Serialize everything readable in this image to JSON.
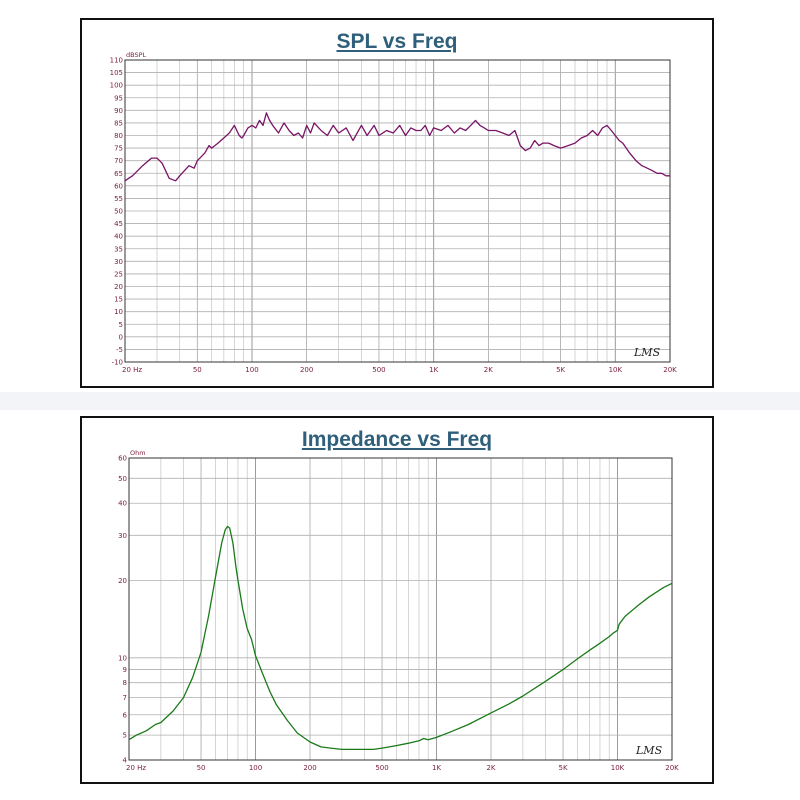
{
  "chart_data": [
    {
      "type": "line",
      "title": "SPL vs Freq",
      "ylabel": "dBSPL",
      "xlabel": "",
      "x_scale": "log",
      "xlim": [
        20,
        20000
      ],
      "ylim": [
        -10,
        110
      ],
      "x_ticks": [
        {
          "value": 20,
          "label": "20 Hz"
        },
        {
          "value": 50,
          "label": "50"
        },
        {
          "value": 100,
          "label": "100"
        },
        {
          "value": 200,
          "label": "200"
        },
        {
          "value": 500,
          "label": "500"
        },
        {
          "value": 1000,
          "label": "1K"
        },
        {
          "value": 2000,
          "label": "2K"
        },
        {
          "value": 5000,
          "label": "5K"
        },
        {
          "value": 10000,
          "label": "10K"
        },
        {
          "value": 20000,
          "label": "20K"
        }
      ],
      "y_ticks": [
        -10,
        -5,
        0,
        5,
        10,
        15,
        20,
        25,
        30,
        35,
        40,
        45,
        50,
        55,
        60,
        65,
        70,
        75,
        80,
        85,
        90,
        95,
        100,
        105,
        110
      ],
      "grid": true,
      "watermark": "LMS",
      "series": [
        {
          "color": "#7a1466",
          "x": [
            20,
            22,
            25,
            28,
            30,
            32,
            35,
            38,
            40,
            45,
            48,
            50,
            55,
            58,
            60,
            65,
            70,
            75,
            80,
            85,
            88,
            90,
            95,
            100,
            105,
            110,
            115,
            120,
            125,
            130,
            140,
            150,
            160,
            170,
            180,
            190,
            200,
            210,
            220,
            240,
            260,
            280,
            300,
            330,
            360,
            400,
            430,
            470,
            500,
            550,
            600,
            650,
            700,
            750,
            800,
            850,
            900,
            950,
            1000,
            1100,
            1200,
            1300,
            1400,
            1500,
            1600,
            1700,
            1800,
            1900,
            2000,
            2200,
            2400,
            2600,
            2800,
            3000,
            3200,
            3400,
            3600,
            3800,
            4000,
            4300,
            4600,
            5000,
            5500,
            6000,
            6500,
            7000,
            7500,
            8000,
            8500,
            9000,
            9500,
            10000,
            10500,
            11000,
            12000,
            13000,
            14000,
            15000,
            16000,
            17000,
            18000,
            19000,
            20000
          ],
          "y": [
            62,
            64,
            68,
            71,
            71,
            69,
            63,
            62,
            64,
            68,
            67,
            70,
            73,
            76,
            75,
            77,
            79,
            81,
            84,
            80,
            79,
            80,
            83,
            84,
            83,
            86,
            84,
            89,
            86,
            84,
            81,
            85,
            82,
            80,
            81,
            79,
            84,
            81,
            85,
            82,
            80,
            84,
            81,
            83,
            78,
            84,
            80,
            84,
            80,
            82,
            81,
            84,
            80,
            83,
            82,
            82,
            84,
            80,
            83,
            82,
            84,
            81,
            83,
            82,
            84,
            86,
            84,
            83,
            82,
            82,
            81,
            80,
            82,
            76,
            74,
            75,
            78,
            76,
            77,
            77,
            76,
            75,
            76,
            77,
            79,
            80,
            82,
            80,
            83,
            84,
            82,
            80,
            78,
            77,
            73,
            70,
            68,
            67,
            66,
            65,
            65,
            64,
            64
          ]
        }
      ]
    },
    {
      "type": "line",
      "title": "Impedance vs Freq",
      "ylabel": "Ohm",
      "xlabel": "",
      "x_scale": "log",
      "y_scale": "log",
      "xlim": [
        20,
        20000
      ],
      "ylim": [
        4,
        60
      ],
      "x_ticks": [
        {
          "value": 20,
          "label": "20 Hz"
        },
        {
          "value": 50,
          "label": "50"
        },
        {
          "value": 100,
          "label": "100"
        },
        {
          "value": 200,
          "label": "200"
        },
        {
          "value": 500,
          "label": "500"
        },
        {
          "value": 1000,
          "label": "1K"
        },
        {
          "value": 2000,
          "label": "2K"
        },
        {
          "value": 5000,
          "label": "5K"
        },
        {
          "value": 10000,
          "label": "10K"
        },
        {
          "value": 20000,
          "label": "20K"
        }
      ],
      "y_ticks": [
        4,
        5,
        6,
        7,
        8,
        9,
        10,
        20,
        30,
        40,
        50,
        60
      ],
      "grid": true,
      "watermark": "LMS",
      "series": [
        {
          "color": "#1a7a1a",
          "x": [
            20,
            22,
            25,
            28,
            30,
            35,
            40,
            45,
            50,
            55,
            60,
            65,
            68,
            70,
            72,
            75,
            78,
            80,
            85,
            90,
            95,
            100,
            110,
            120,
            130,
            150,
            170,
            200,
            230,
            260,
            300,
            350,
            400,
            450,
            500,
            600,
            700,
            800,
            850,
            900,
            1000,
            1200,
            1500,
            2000,
            2500,
            3000,
            4000,
            5000,
            6000,
            7000,
            8000,
            9000,
            9500,
            10000,
            10200,
            11000,
            13000,
            15000,
            18000,
            20000
          ],
          "y": [
            4.8,
            5.0,
            5.2,
            5.5,
            5.6,
            6.2,
            7.0,
            8.4,
            10.5,
            14.5,
            20.5,
            28.0,
            31.5,
            32.5,
            32.0,
            28.0,
            22.5,
            20.0,
            15.5,
            13.0,
            11.8,
            10.2,
            8.6,
            7.4,
            6.6,
            5.7,
            5.1,
            4.7,
            4.5,
            4.45,
            4.4,
            4.4,
            4.4,
            4.4,
            4.45,
            4.55,
            4.65,
            4.75,
            4.85,
            4.8,
            4.9,
            5.15,
            5.5,
            6.1,
            6.6,
            7.1,
            8.1,
            9.0,
            9.9,
            10.7,
            11.4,
            12.1,
            12.5,
            12.8,
            13.5,
            14.5,
            16.0,
            17.3,
            18.8,
            19.5
          ]
        }
      ]
    }
  ]
}
